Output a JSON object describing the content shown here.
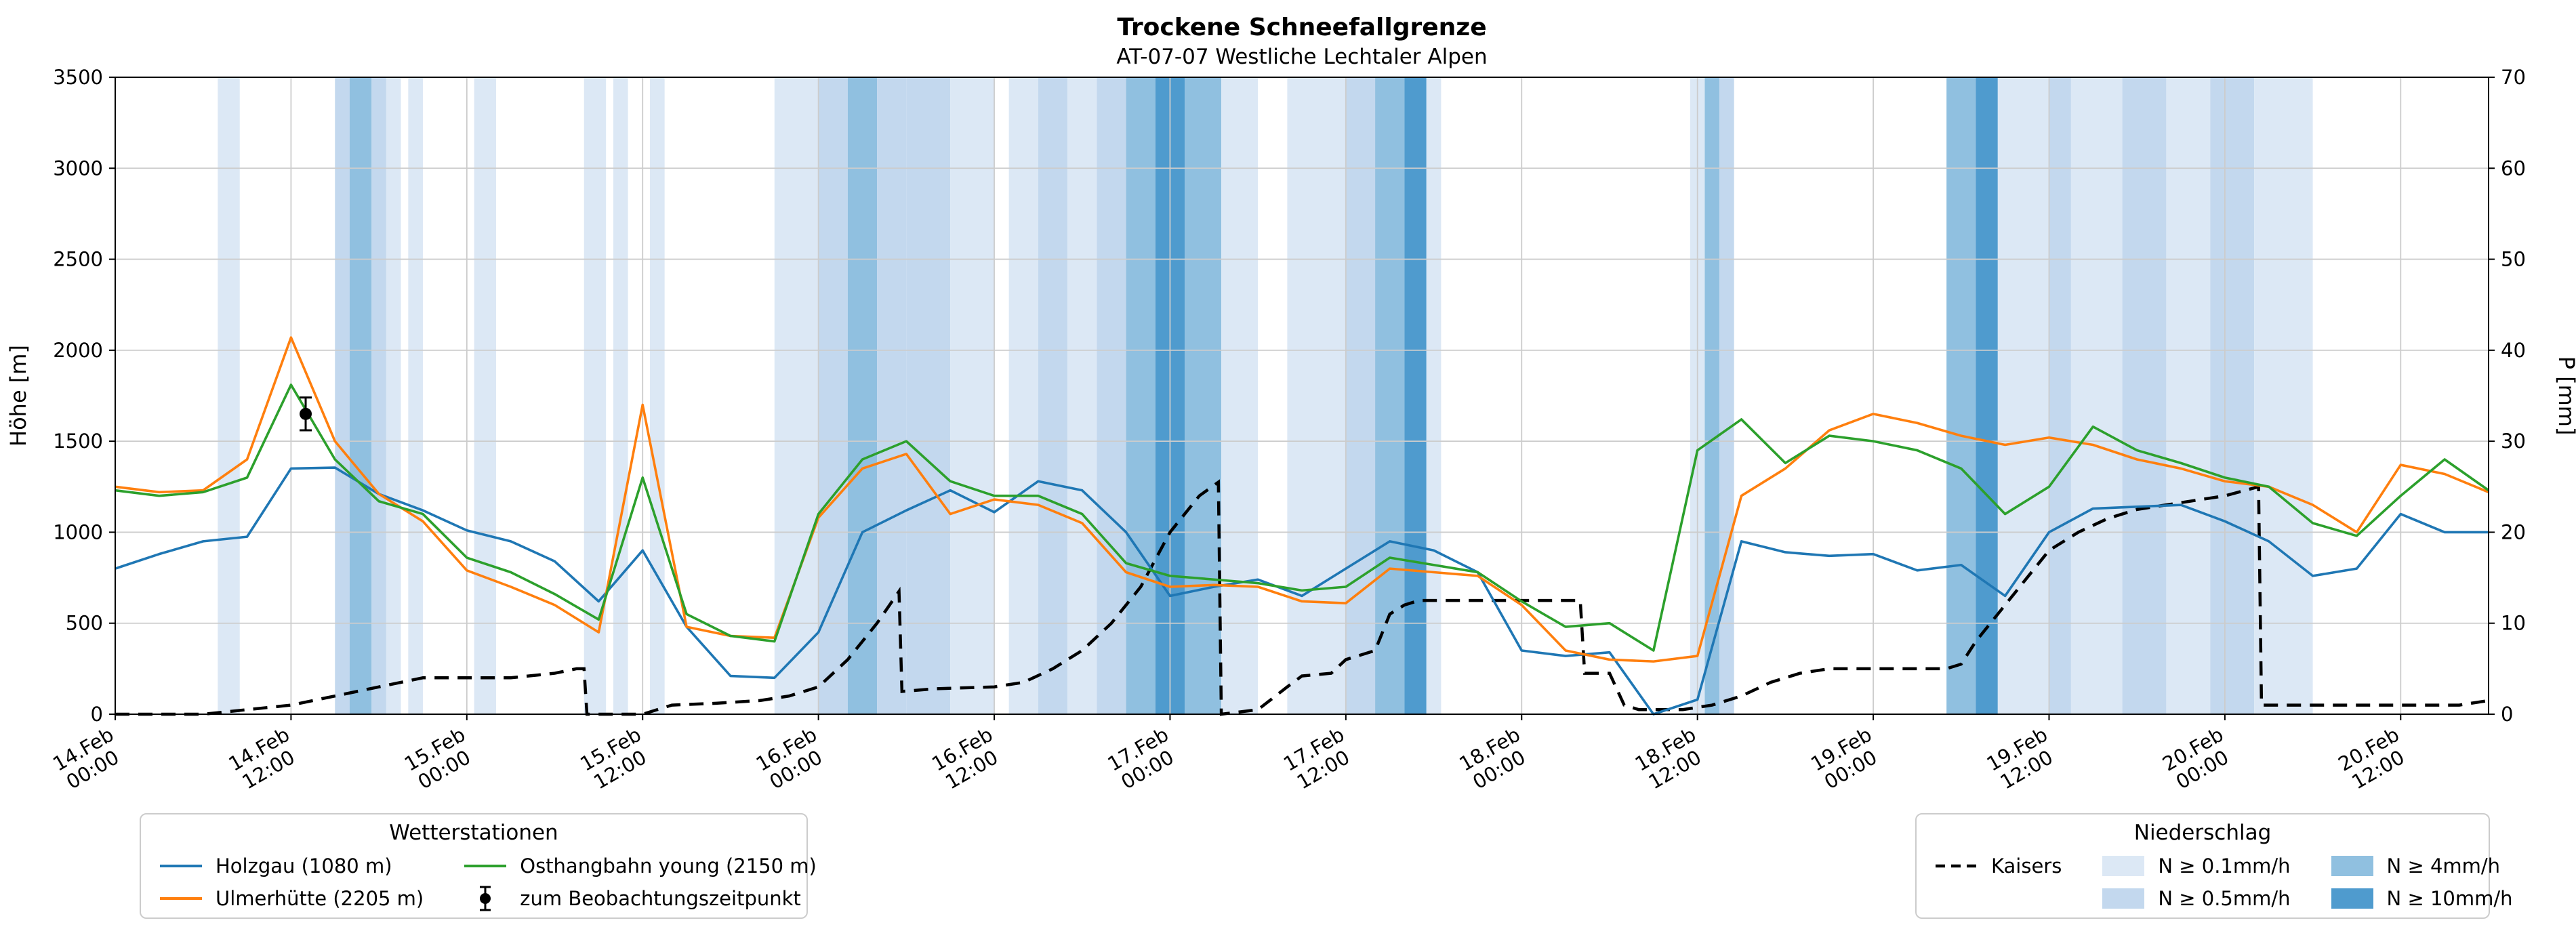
{
  "title": "Trockene Schneefallgrenze",
  "subtitle": "AT-07-07 Westliche Lechtaler Alpen",
  "axes": {
    "y_left_label": "Höhe [m]",
    "y_right_label": "P [mm]",
    "y_left_ticks": [
      0,
      500,
      1000,
      1500,
      2000,
      2500,
      3000,
      3500
    ],
    "y_right_ticks": [
      0,
      10,
      20,
      30,
      40,
      50,
      60,
      70
    ],
    "x_tick_hours": [
      0,
      12,
      24,
      36,
      48,
      60,
      72,
      84,
      96,
      108,
      120,
      132,
      144,
      156
    ],
    "x_tick_labels": [
      [
        "14.Feb",
        "00:00"
      ],
      [
        "14.Feb",
        "12:00"
      ],
      [
        "15.Feb",
        "00:00"
      ],
      [
        "15.Feb",
        "12:00"
      ],
      [
        "16.Feb",
        "00:00"
      ],
      [
        "16.Feb",
        "12:00"
      ],
      [
        "17.Feb",
        "00:00"
      ],
      [
        "17.Feb",
        "12:00"
      ],
      [
        "18.Feb",
        "00:00"
      ],
      [
        "18.Feb",
        "12:00"
      ],
      [
        "19.Feb",
        "00:00"
      ],
      [
        "19.Feb",
        "12:00"
      ],
      [
        "20.Feb",
        "00:00"
      ],
      [
        "20.Feb",
        "12:00"
      ]
    ]
  },
  "legend_stations": {
    "title": "Wetterstationen",
    "items": [
      {
        "id": "holzgau",
        "label": "Holzgau (1080 m)",
        "swatch": "line",
        "color": "#1f77b4"
      },
      {
        "id": "ulmerhuette",
        "label": "Ulmerhütte (2205 m)",
        "swatch": "line",
        "color": "#ff7f0e"
      },
      {
        "id": "osthangbahn",
        "label": "Osthangbahn young (2150 m)",
        "swatch": "line",
        "color": "#2ca02c"
      },
      {
        "id": "beobachtungszeitpunkt",
        "label": "zum Beobachtungszeitpunkt",
        "swatch": "errorbar-marker",
        "color": "#000000"
      }
    ]
  },
  "legend_precip": {
    "title": "Niederschlag",
    "items": [
      {
        "id": "kaisers",
        "label": "Kaisers",
        "swatch": "dashed-line",
        "color": "#000000"
      },
      {
        "id": "n-0-1",
        "label": "N ≥ 0.1mm/h",
        "swatch": "patch",
        "color": "#dce8f5"
      },
      {
        "id": "n-0-5",
        "label": "N ≥ 0.5mm/h",
        "swatch": "patch",
        "color": "#c3d8ee"
      },
      {
        "id": "n-4",
        "label": "N ≥ 4mm/h",
        "swatch": "patch",
        "color": "#90c0e0"
      },
      {
        "id": "n-10",
        "label": "N ≥ 10mm/h",
        "swatch": "patch",
        "color": "#4f9bce"
      }
    ]
  },
  "colors": {
    "grid": "#cccccc",
    "axis": "#000000",
    "background": "#ffffff"
  },
  "chart_data": {
    "type": "line",
    "title": "Trockene Schneefallgrenze",
    "subtitle": "AT-07-07 Westliche Lechtaler Alpen",
    "x_unit": "hours since 14.Feb 00:00",
    "x_range": [
      0,
      162
    ],
    "ylim_left": [
      0,
      3500
    ],
    "ylim_right": [
      0,
      70
    ],
    "grid": true,
    "x_hours": [
      0,
      3,
      6,
      9,
      12,
      15,
      18,
      21,
      24,
      27,
      30,
      33,
      36,
      39,
      42,
      45,
      48,
      51,
      54,
      57,
      60,
      63,
      66,
      69,
      72,
      75,
      78,
      81,
      84,
      87,
      90,
      93,
      96,
      99,
      102,
      105,
      108,
      111,
      114,
      117,
      120,
      123,
      126,
      129,
      132,
      135,
      138,
      141,
      144,
      147,
      150,
      153,
      156,
      159,
      162
    ],
    "series": [
      {
        "id": "holzgau",
        "label": "Holzgau (1080 m)",
        "color": "#1f77b4",
        "axis": "left",
        "values": [
          800,
          880,
          950,
          975,
          1350,
          1355,
          1210,
          1120,
          1010,
          950,
          840,
          620,
          900,
          480,
          210,
          200,
          450,
          1000,
          1120,
          1230,
          1110,
          1280,
          1230,
          1000,
          650,
          700,
          740,
          650,
          800,
          950,
          900,
          780,
          350,
          320,
          340,
          0,
          80,
          950,
          890,
          870,
          880,
          790,
          820,
          650,
          1000,
          1130,
          1140,
          1150,
          1060,
          950,
          760,
          800,
          1100,
          1000,
          1000
        ]
      },
      {
        "id": "ulmerhuette",
        "label": "Ulmerhütte (2205 m)",
        "color": "#ff7f0e",
        "axis": "left",
        "values": [
          1250,
          1220,
          1230,
          1400,
          2070,
          1500,
          1210,
          1060,
          790,
          700,
          600,
          450,
          1700,
          480,
          430,
          420,
          1080,
          1350,
          1430,
          1100,
          1180,
          1150,
          1050,
          780,
          700,
          710,
          700,
          620,
          610,
          800,
          780,
          760,
          600,
          350,
          300,
          290,
          320,
          1200,
          1350,
          1560,
          1650,
          1600,
          1530,
          1480,
          1520,
          1480,
          1400,
          1350,
          1280,
          1250,
          1150,
          1000,
          1370,
          1320,
          1220
        ]
      },
      {
        "id": "osthangbahn",
        "label": "Osthangbahn young (2150 m)",
        "color": "#2ca02c",
        "axis": "left",
        "values": [
          1230,
          1200,
          1220,
          1300,
          1810,
          1400,
          1170,
          1100,
          860,
          780,
          660,
          520,
          1300,
          550,
          430,
          400,
          1100,
          1400,
          1500,
          1280,
          1200,
          1200,
          1100,
          830,
          760,
          740,
          720,
          680,
          700,
          860,
          820,
          780,
          620,
          480,
          500,
          350,
          1450,
          1620,
          1380,
          1530,
          1500,
          1450,
          1350,
          1100,
          1250,
          1580,
          1450,
          1380,
          1300,
          1250,
          1050,
          980,
          1200,
          1400,
          1230
        ]
      }
    ],
    "kaisers": {
      "id": "kaisers",
      "label": "Kaisers",
      "color": "#000000",
      "axis": "right",
      "style": "dashed",
      "x": [
        0,
        6,
        9,
        12,
        15,
        18,
        21,
        27,
        30,
        31.5,
        32,
        32.2,
        36,
        38,
        41,
        44,
        46,
        48,
        50,
        52,
        53.5,
        53.7,
        56,
        60,
        62,
        64,
        66,
        68,
        70,
        71,
        72,
        73,
        74,
        75.3,
        75.5,
        78,
        80,
        81,
        83,
        84,
        85,
        86,
        87,
        88,
        89,
        100,
        100.3,
        102,
        103,
        104,
        107,
        109,
        111,
        113,
        115,
        117,
        125,
        126,
        127,
        128,
        129,
        130,
        131,
        132,
        133,
        134,
        136,
        138,
        140,
        142,
        144,
        146.3,
        146.5,
        150,
        156,
        160,
        162
      ],
      "values": [
        0,
        0,
        0.5,
        1,
        2,
        3,
        4,
        4,
        4.5,
        5,
        5,
        0,
        0,
        1,
        1.2,
        1.5,
        2,
        3,
        6,
        10,
        13.5,
        2.5,
        2.8,
        3,
        3.5,
        5,
        7,
        10,
        14,
        17,
        20,
        22,
        24,
        25.5,
        0,
        0.5,
        3,
        4.2,
        4.5,
        6,
        6.5,
        7,
        11,
        12,
        12.5,
        12.5,
        4.5,
        4.5,
        1,
        0.5,
        0.5,
        1,
        2,
        3.5,
        4.5,
        5,
        5,
        5.5,
        8,
        10,
        12,
        14,
        16,
        18,
        19,
        20,
        21.5,
        22.5,
        23,
        23.5,
        24,
        25,
        1,
        1,
        1,
        1,
        1.5
      ]
    },
    "band_levels": [
      {
        "label": "N ≥ 0.1mm/h",
        "color": "#dce8f5"
      },
      {
        "label": "N ≥ 0.5mm/h",
        "color": "#c3d8ee"
      },
      {
        "label": "N ≥ 4mm/h",
        "color": "#90c0e0"
      },
      {
        "label": "N ≥ 10mm/h",
        "color": "#4f9bce"
      }
    ],
    "precip_bands": [
      {
        "start": 7,
        "end": 8.5,
        "level": 0
      },
      {
        "start": 15,
        "end": 16,
        "level": 1
      },
      {
        "start": 16,
        "end": 17.5,
        "level": 2
      },
      {
        "start": 17.5,
        "end": 18.5,
        "level": 1
      },
      {
        "start": 18.5,
        "end": 19.5,
        "level": 0
      },
      {
        "start": 20,
        "end": 21,
        "level": 0
      },
      {
        "start": 24.5,
        "end": 26,
        "level": 0
      },
      {
        "start": 32,
        "end": 33.5,
        "level": 0
      },
      {
        "start": 34,
        "end": 35,
        "level": 0
      },
      {
        "start": 36.5,
        "end": 37.5,
        "level": 0
      },
      {
        "start": 45,
        "end": 48,
        "level": 0
      },
      {
        "start": 48,
        "end": 50,
        "level": 1
      },
      {
        "start": 50,
        "end": 52,
        "level": 2
      },
      {
        "start": 52,
        "end": 54,
        "level": 1
      },
      {
        "start": 54,
        "end": 57,
        "level": 1
      },
      {
        "start": 57,
        "end": 60,
        "level": 0
      },
      {
        "start": 61,
        "end": 63,
        "level": 0
      },
      {
        "start": 63,
        "end": 65,
        "level": 1
      },
      {
        "start": 65,
        "end": 67,
        "level": 0
      },
      {
        "start": 67,
        "end": 69,
        "level": 1
      },
      {
        "start": 69,
        "end": 71,
        "level": 2
      },
      {
        "start": 71,
        "end": 73,
        "level": 3
      },
      {
        "start": 73,
        "end": 75.5,
        "level": 2
      },
      {
        "start": 75.5,
        "end": 78,
        "level": 0
      },
      {
        "start": 80,
        "end": 84,
        "level": 0
      },
      {
        "start": 84,
        "end": 86,
        "level": 1
      },
      {
        "start": 86,
        "end": 88,
        "level": 2
      },
      {
        "start": 88,
        "end": 89.5,
        "level": 3
      },
      {
        "start": 89.5,
        "end": 90.5,
        "level": 0
      },
      {
        "start": 107.5,
        "end": 108.5,
        "level": 0
      },
      {
        "start": 108.5,
        "end": 109.5,
        "level": 2
      },
      {
        "start": 109.5,
        "end": 110.5,
        "level": 1
      },
      {
        "start": 125,
        "end": 127,
        "level": 2
      },
      {
        "start": 127,
        "end": 128.5,
        "level": 3
      },
      {
        "start": 128.5,
        "end": 132,
        "level": 0
      },
      {
        "start": 132,
        "end": 133.5,
        "level": 1
      },
      {
        "start": 133.5,
        "end": 137,
        "level": 0
      },
      {
        "start": 137,
        "end": 140,
        "level": 1
      },
      {
        "start": 140,
        "end": 143,
        "level": 0
      },
      {
        "start": 143,
        "end": 146,
        "level": 1
      },
      {
        "start": 146,
        "end": 150,
        "level": 0
      }
    ],
    "observation": {
      "label": "zum Beobachtungszeitpunkt",
      "x": 13,
      "y": 1650,
      "err": 90
    }
  }
}
